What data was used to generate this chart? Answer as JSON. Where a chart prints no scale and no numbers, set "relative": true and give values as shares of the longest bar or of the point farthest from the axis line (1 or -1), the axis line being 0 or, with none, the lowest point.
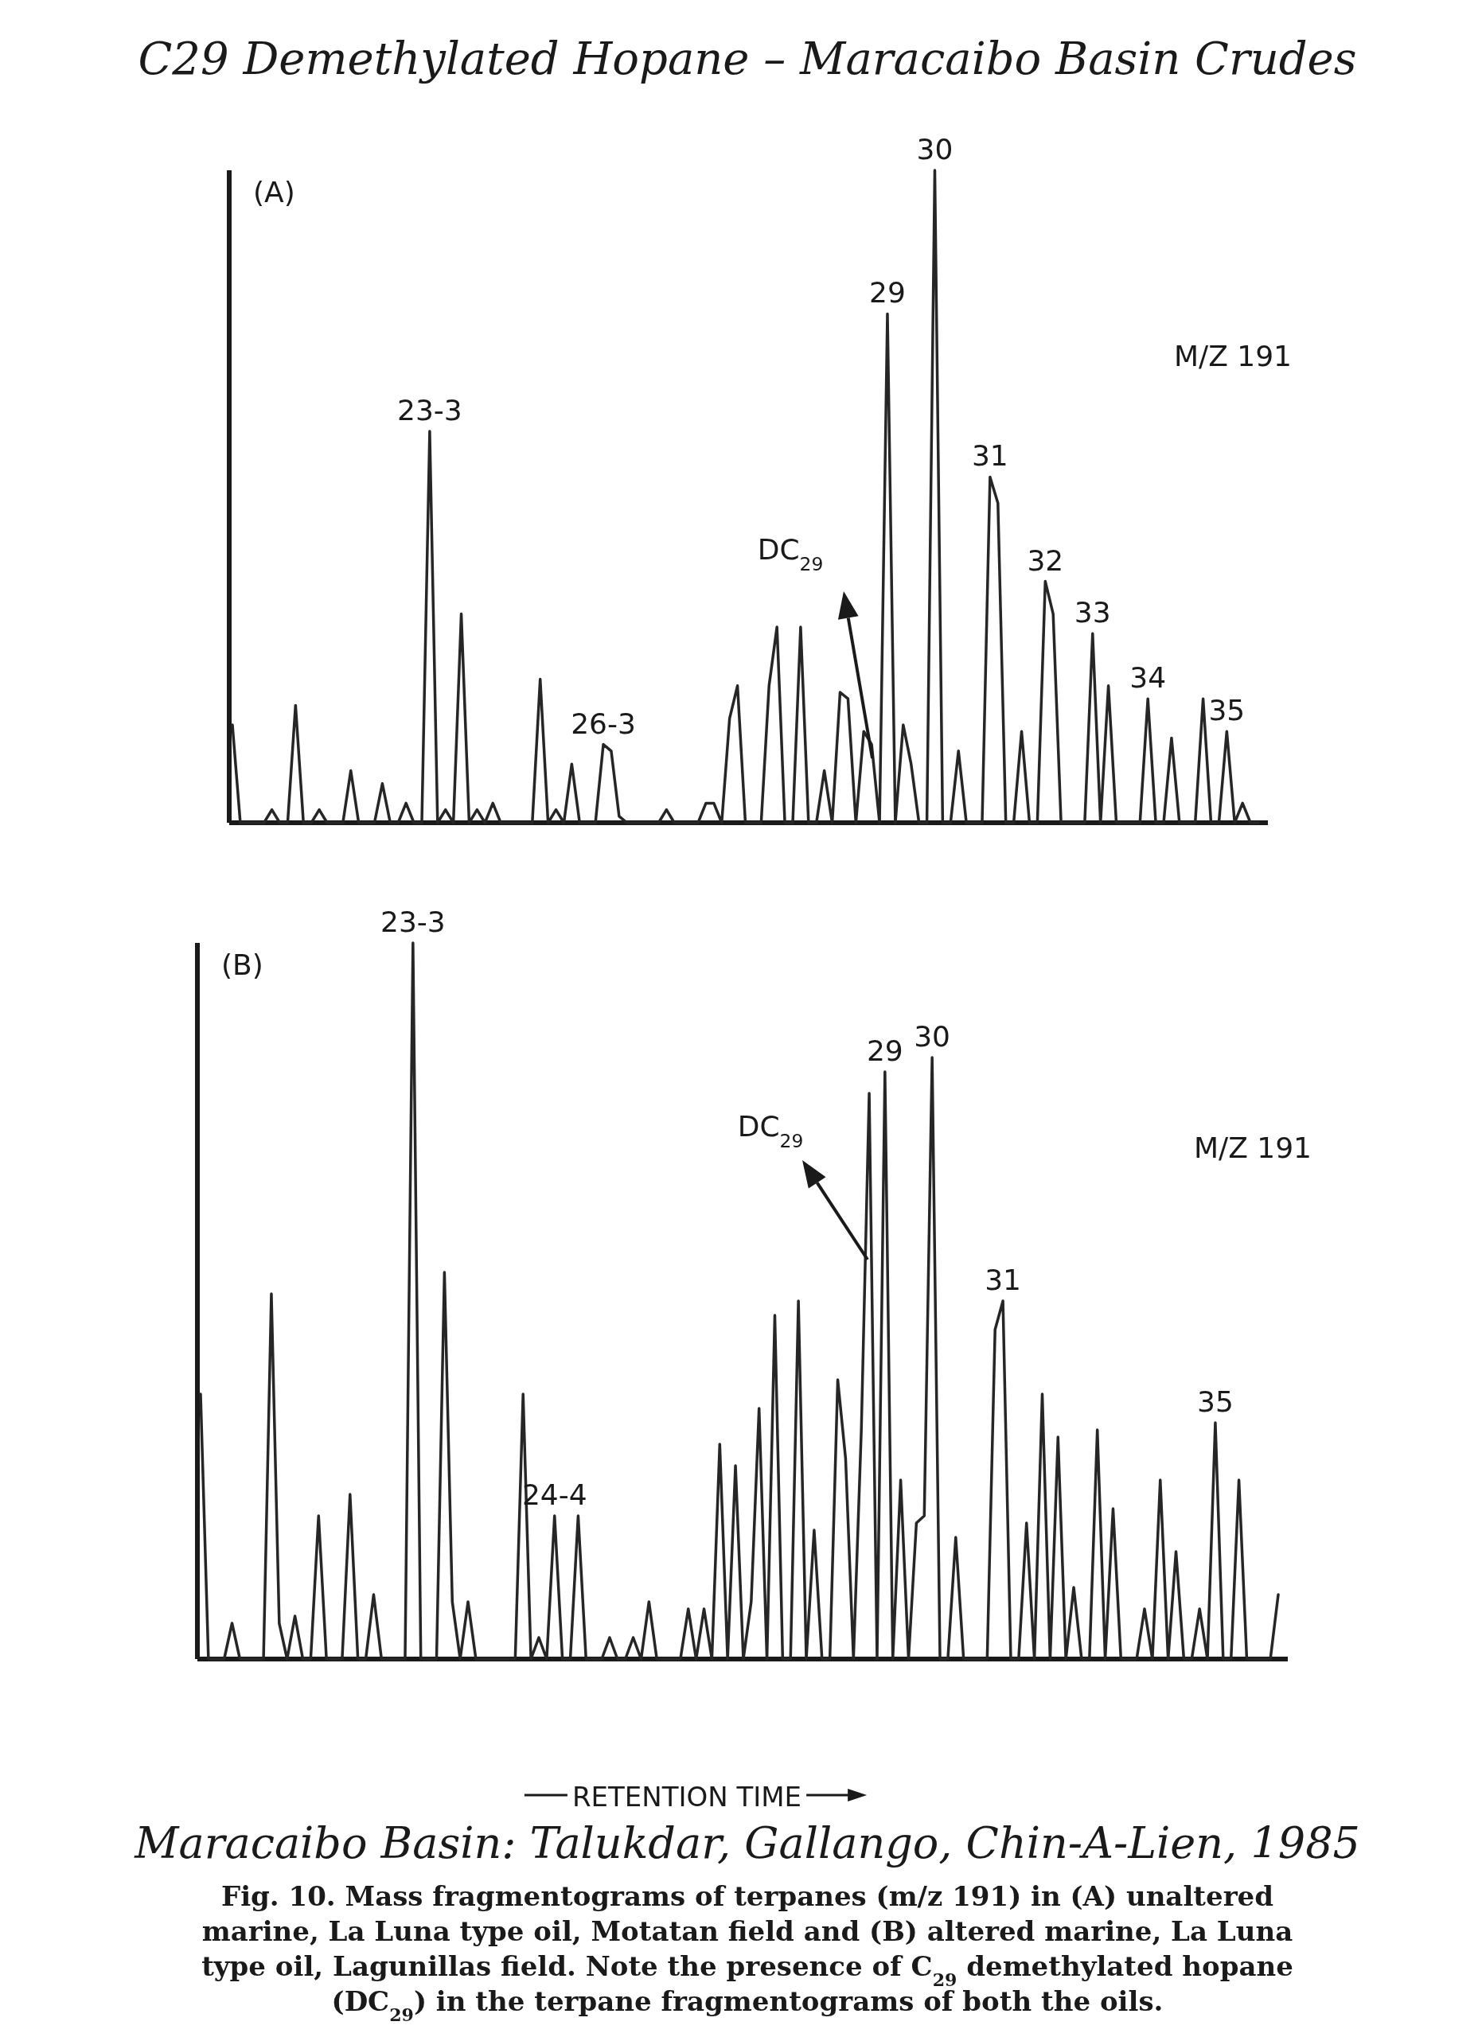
{
  "chart_data": [
    {
      "type": "line",
      "title": "C29 Demethylated Hopane – Maracaibo Basin Crudes",
      "subtitle": "(A)",
      "relative": true,
      "color": "#262626",
      "categories": [
        null,
        null,
        null,
        null,
        null,
        null,
        null,
        null,
        null,
        null,
        null,
        null,
        null,
        null,
        null,
        null,
        null,
        null,
        null,
        null,
        null,
        null,
        null,
        null,
        null,
        null,
        null,
        null,
        null,
        null,
        null,
        null,
        null,
        null,
        null,
        null,
        null,
        null,
        null,
        null,
        null,
        null,
        null,
        null,
        null,
        null,
        null,
        null,
        null,
        null,
        null,
        null,
        null,
        null,
        null,
        null,
        null,
        null,
        null,
        null,
        null,
        null,
        null,
        null,
        null,
        null,
        null,
        null,
        null,
        null,
        null,
        null,
        null,
        null,
        null,
        null,
        null,
        null,
        null,
        null,
        null,
        null,
        null,
        null,
        null,
        null,
        null,
        null,
        null,
        null,
        null,
        null,
        null,
        null,
        null,
        null,
        null,
        null,
        null,
        null,
        null,
        null,
        null,
        null,
        null,
        null,
        null,
        null,
        null,
        null,
        null,
        null,
        null,
        null,
        null,
        null,
        null,
        null,
        null,
        null,
        null,
        null,
        null,
        null,
        null,
        null,
        null,
        null,
        null,
        null,
        null
      ],
      "values": [
        0.15,
        0,
        0,
        0,
        0,
        0.02,
        0,
        0,
        0.18,
        0,
        0,
        0.02,
        0,
        0,
        0,
        0.08,
        0,
        0,
        0,
        0.06,
        0,
        0,
        0.03,
        0,
        0,
        0.6,
        0,
        0.02,
        0,
        0.32,
        0,
        0.02,
        0,
        0.03,
        0,
        0,
        0,
        0,
        0,
        0.22,
        0,
        0.02,
        0,
        0.09,
        0,
        0,
        0,
        0.12,
        0.11,
        0.01,
        0,
        0,
        0,
        0,
        0,
        0.02,
        0,
        0,
        0,
        0,
        0.03,
        0.03,
        0,
        0.16,
        0.21,
        0,
        0,
        0,
        0.21,
        0.3,
        0,
        0,
        0.3,
        0,
        0,
        0.08,
        0,
        0.2,
        0.19,
        0,
        0.14,
        0.12,
        0,
        0.78,
        0,
        0.15,
        0.09,
        0,
        0,
        1,
        0,
        0,
        0.11,
        0,
        0,
        0,
        0.53,
        0.49,
        0,
        0,
        0.14,
        0,
        0,
        0.37,
        0.32,
        0,
        0,
        0,
        0,
        0.29,
        0,
        0.21,
        0,
        0,
        0,
        0,
        0.19,
        0,
        0,
        0.13,
        0,
        0,
        0,
        0.19,
        0,
        0,
        0.14,
        0,
        0.03,
        0,
        0
      ],
      "annotations": [
        "M/Z 191",
        "DC$_{29}$",
        {
          "text": "23-3",
          "y": 0.6
        },
        {
          "text": "26-3",
          "y": 0.12
        },
        {
          "text": "29",
          "y": 0.78
        },
        {
          "text": "30",
          "y": 1
        },
        {
          "text": "31",
          "y": 0.53
        },
        {
          "text": "32",
          "y": 0.37
        },
        {
          "text": "33",
          "y": 0.29
        },
        {
          "text": "34",
          "y": 0.19
        },
        {
          "text": "35",
          "y": 0.14
        }
      ]
    },
    {
      "type": "line",
      "subtitle": "(B)",
      "relative": true,
      "color": "#262626",
      "xlabel": "RETENTION TIME",
      "categories": [
        null,
        null,
        null,
        null,
        null,
        null,
        null,
        null,
        null,
        null,
        null,
        null,
        null,
        null,
        null,
        null,
        null,
        null,
        null,
        null,
        null,
        null,
        null,
        null,
        null,
        null,
        null,
        null,
        null,
        null,
        null,
        null,
        null,
        null,
        null,
        null,
        null,
        null,
        null,
        null,
        null,
        null,
        null,
        null,
        null,
        null,
        null,
        null,
        null,
        null,
        null,
        null,
        null,
        null,
        null,
        null,
        null,
        null,
        null,
        null,
        null,
        null,
        null,
        null,
        null,
        null,
        null,
        null,
        null,
        null,
        null,
        null,
        null,
        null,
        null,
        null,
        null,
        null,
        null,
        null,
        null,
        null,
        null,
        null,
        null,
        null,
        null,
        null,
        null,
        null,
        null,
        null,
        null,
        null,
        null,
        null,
        null,
        null,
        null,
        null,
        null,
        null,
        null,
        null,
        null,
        null,
        null,
        null,
        null,
        null,
        null,
        null,
        null,
        null,
        null,
        null,
        null,
        null,
        null,
        null,
        null,
        null,
        null,
        null,
        null,
        null,
        null,
        null,
        null,
        null,
        null,
        null,
        null,
        null,
        null,
        null,
        null,
        null
      ],
      "values": [
        0.37,
        0,
        0,
        0,
        0.05,
        0,
        0,
        0,
        0,
        0.51,
        0.05,
        0,
        0.06,
        0,
        0,
        0.2,
        0,
        0,
        0,
        0.23,
        0,
        0,
        0.09,
        0,
        0,
        0,
        0,
        1,
        0,
        0,
        0,
        0.54,
        0.08,
        0,
        0.08,
        0,
        0,
        0,
        0,
        0,
        0,
        0.37,
        0,
        0.03,
        0,
        0.2,
        0,
        0,
        0.2,
        0,
        0,
        0,
        0.03,
        0,
        0,
        0.03,
        0,
        0.08,
        0,
        0,
        0,
        0,
        0.07,
        0,
        0.07,
        0,
        0.3,
        0,
        0.27,
        0,
        0.08,
        0.35,
        0,
        0.48,
        0,
        0,
        0.5,
        0,
        0.18,
        0,
        0,
        0.39,
        0.28,
        0,
        0.32,
        0.79,
        0,
        0.82,
        0,
        0.25,
        0,
        0.19,
        0.2,
        0.84,
        0,
        0,
        0.17,
        0,
        0,
        0,
        0,
        0.46,
        0.5,
        0,
        0,
        0.19,
        0,
        0.37,
        0,
        0.31,
        0,
        0.1,
        0,
        0,
        0.32,
        0,
        0.21,
        0,
        0,
        0,
        0.07,
        0,
        0.25,
        0,
        0.15,
        0,
        0,
        0.07,
        0,
        0.33,
        0,
        0,
        0.25,
        0,
        0,
        0,
        0,
        0.09
      ],
      "annotations": [
        "M/Z 191",
        "DC$_{29}$",
        "Maracaibo Basin: Talukdar, Gallango, Chin-A-Lien, 1985",
        "Fig. 10. Mass fragmentograms of terpanes (m/z 191) in (A) unaltered marine, La Luna type oil, Motatan field and (B) altered marine, La Luna type oil, Lagunillas field. Note the presence of C$_{29}$ demethylated hopane (DC$_{29}$) in the terpane fragmentograms of both the oils.",
        {
          "text": "23-3",
          "y": 1
        },
        {
          "text": "24-4",
          "y": 0.2
        },
        {
          "text": "29",
          "y": 0.82
        },
        {
          "text": "30",
          "y": 0.84
        },
        {
          "text": "31",
          "y": 0.5
        },
        {
          "text": "35",
          "y": 0.33
        }
      ]
    }
  ]
}
